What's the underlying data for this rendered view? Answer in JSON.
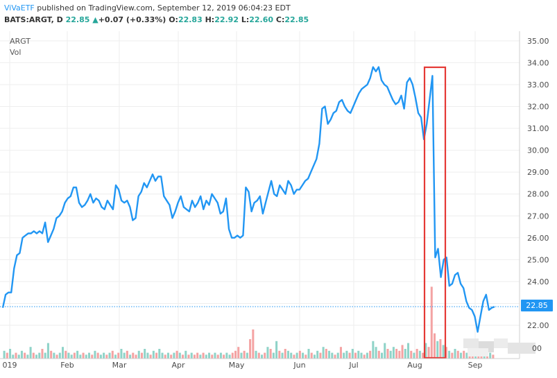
{
  "header": {
    "publisher": "ViVaETF",
    "published_text": " published on TradingView.com, September 12, 2019 06:04:23 EDT",
    "symbol_line": "BATS:ARGT, D",
    "last": "22.85",
    "change": "+0.07 (+0.33%)",
    "open_label": "O:",
    "open": "22.83",
    "high_label": "H:",
    "high": "22.92",
    "low_label": "L:",
    "low": "22.60",
    "close_label": "C:",
    "close": "22.85"
  },
  "legend": {
    "symbol": "ARGT",
    "volume": "Vol"
  },
  "colors": {
    "line": "#2196f3",
    "vol_up": "#8fd3c8",
    "vol_down": "#f4a3a3",
    "price_label_bg": "#2196f3",
    "highlight": "#e53935",
    "grid": "#eeeeee"
  },
  "chart_data": {
    "type": "line",
    "ylim": [
      21.0,
      35.3
    ],
    "y_ticks": [
      22,
      23,
      24,
      25,
      26,
      27,
      28,
      29,
      30,
      31,
      32,
      33,
      34,
      35
    ],
    "y_tick_labels": [
      "22.00",
      "23.00",
      "24.00",
      "25.00",
      "26.00",
      "27.00",
      "28.00",
      "29.00",
      "30.00",
      "31.00",
      "32.00",
      "33.00",
      "34.00",
      "35.00"
    ],
    "x_tick_labels": [
      "019",
      "Feb",
      "Mar",
      "Apr",
      "May",
      "Jun",
      "Jul",
      "Aug",
      "Sep"
    ],
    "last_price_label": "22.85",
    "last_price": 22.85,
    "partial_tick_label": "00",
    "series": [
      {
        "values": [
          22.8,
          23.4,
          23.5,
          23.5,
          24.6,
          25.2,
          25.3,
          26.0,
          26.1,
          26.2,
          26.2,
          26.3,
          26.2,
          26.3,
          26.2,
          26.7,
          25.8,
          26.1,
          26.4,
          26.9,
          27.0,
          27.2,
          27.6,
          27.8,
          27.9,
          28.3,
          28.3,
          27.6,
          27.4,
          27.5,
          27.7,
          28.0,
          27.6,
          27.8,
          27.7,
          27.4,
          27.3,
          27.7,
          27.5,
          27.3,
          28.4,
          28.2,
          27.7,
          27.6,
          27.7,
          27.4,
          26.8,
          26.9,
          27.9,
          28.1,
          28.5,
          28.3,
          28.6,
          28.9,
          28.6,
          28.8,
          28.8,
          27.9,
          27.7,
          27.5,
          26.9,
          27.2,
          27.6,
          27.9,
          27.4,
          27.3,
          27.2,
          27.7,
          27.4,
          27.6,
          27.9,
          27.3,
          27.7,
          27.5,
          28.0,
          27.8,
          27.6,
          27.1,
          27.2,
          27.8,
          26.4,
          26.0,
          26.0,
          26.1,
          26.0,
          26.1,
          28.3,
          28.1,
          27.2,
          27.6,
          27.7,
          27.9,
          27.1,
          27.6,
          28.1,
          28.6,
          28.0,
          27.9,
          28.4,
          28.2,
          28.0,
          28.6,
          28.4,
          28.0,
          28.2,
          28.2,
          28.4,
          28.6,
          28.7,
          29.0,
          29.3,
          29.6,
          30.3,
          31.9,
          32.0,
          31.2,
          31.4,
          31.7,
          31.8,
          32.2,
          32.3,
          32.0,
          31.8,
          31.7,
          32.0,
          32.3,
          32.6,
          32.8,
          32.9,
          33.0,
          33.3,
          33.8,
          33.6,
          33.8,
          33.2,
          33.0,
          32.9,
          32.6,
          32.3,
          32.1,
          32.2,
          32.5,
          31.9,
          33.1,
          33.3,
          33.0,
          32.4,
          31.7,
          31.5,
          30.5,
          31.2,
          32.3,
          33.4,
          25.1,
          25.5,
          24.2,
          25.0,
          25.1,
          23.8,
          23.9,
          24.3,
          24.4,
          23.9,
          23.7,
          23.1,
          22.8,
          22.7,
          22.4,
          21.7,
          22.4,
          23.1,
          23.4,
          22.7,
          22.8,
          22.85
        ]
      }
    ],
    "volume": [
      {
        "v": 0.4,
        "up": 1
      },
      {
        "v": 0.3,
        "up": 0
      },
      {
        "v": 0.5,
        "up": 1
      },
      {
        "v": 0.2,
        "up": 1
      },
      {
        "v": 0.3,
        "up": 0
      },
      {
        "v": 0.2,
        "up": 1
      },
      {
        "v": 0.4,
        "up": 1
      },
      {
        "v": 0.3,
        "up": 0
      },
      {
        "v": 0.2,
        "up": 1
      },
      {
        "v": 0.6,
        "up": 1
      },
      {
        "v": 0.3,
        "up": 0
      },
      {
        "v": 0.2,
        "up": 1
      },
      {
        "v": 0.3,
        "up": 1
      },
      {
        "v": 0.5,
        "up": 0
      },
      {
        "v": 0.3,
        "up": 1
      },
      {
        "v": 0.8,
        "up": 1
      },
      {
        "v": 0.4,
        "up": 0
      },
      {
        "v": 0.3,
        "up": 1
      },
      {
        "v": 0.2,
        "up": 0
      },
      {
        "v": 0.3,
        "up": 1
      },
      {
        "v": 0.6,
        "up": 1
      },
      {
        "v": 0.4,
        "up": 0
      },
      {
        "v": 0.3,
        "up": 1
      },
      {
        "v": 0.2,
        "up": 1
      },
      {
        "v": 0.3,
        "up": 0
      },
      {
        "v": 0.4,
        "up": 1
      },
      {
        "v": 0.2,
        "up": 1
      },
      {
        "v": 0.3,
        "up": 0
      },
      {
        "v": 0.2,
        "up": 1
      },
      {
        "v": 0.3,
        "up": 1
      },
      {
        "v": 0.2,
        "up": 0
      },
      {
        "v": 0.4,
        "up": 1
      },
      {
        "v": 0.3,
        "up": 0
      },
      {
        "v": 0.2,
        "up": 1
      },
      {
        "v": 0.3,
        "up": 1
      },
      {
        "v": 0.2,
        "up": 0
      },
      {
        "v": 0.3,
        "up": 1
      },
      {
        "v": 0.4,
        "up": 0
      },
      {
        "v": 0.2,
        "up": 1
      },
      {
        "v": 0.3,
        "up": 0
      },
      {
        "v": 0.5,
        "up": 1
      },
      {
        "v": 0.3,
        "up": 1
      },
      {
        "v": 0.4,
        "up": 0
      },
      {
        "v": 0.2,
        "up": 1
      },
      {
        "v": 0.3,
        "up": 0
      },
      {
        "v": 0.2,
        "up": 0
      },
      {
        "v": 0.4,
        "up": 1
      },
      {
        "v": 0.3,
        "up": 0
      },
      {
        "v": 0.5,
        "up": 1
      },
      {
        "v": 0.3,
        "up": 1
      },
      {
        "v": 0.2,
        "up": 0
      },
      {
        "v": 0.4,
        "up": 1
      },
      {
        "v": 0.3,
        "up": 0
      },
      {
        "v": 0.5,
        "up": 1
      },
      {
        "v": 0.3,
        "up": 1
      },
      {
        "v": 0.2,
        "up": 0
      },
      {
        "v": 0.3,
        "up": 1
      },
      {
        "v": 0.2,
        "up": 0
      },
      {
        "v": 0.3,
        "up": 1
      },
      {
        "v": 0.4,
        "up": 0
      },
      {
        "v": 0.3,
        "up": 1
      },
      {
        "v": 0.2,
        "up": 0
      },
      {
        "v": 0.4,
        "up": 1
      },
      {
        "v": 0.2,
        "up": 0
      },
      {
        "v": 0.3,
        "up": 1
      },
      {
        "v": 0.2,
        "up": 0
      },
      {
        "v": 0.3,
        "up": 0
      },
      {
        "v": 0.2,
        "up": 1
      },
      {
        "v": 0.3,
        "up": 0
      },
      {
        "v": 0.2,
        "up": 1
      },
      {
        "v": 0.3,
        "up": 1
      },
      {
        "v": 0.2,
        "up": 0
      },
      {
        "v": 0.3,
        "up": 1
      },
      {
        "v": 0.2,
        "up": 0
      },
      {
        "v": 0.3,
        "up": 1
      },
      {
        "v": 0.2,
        "up": 0
      },
      {
        "v": 0.3,
        "up": 1
      },
      {
        "v": 0.2,
        "up": 1
      },
      {
        "v": 0.3,
        "up": 0
      },
      {
        "v": 0.4,
        "up": 0
      },
      {
        "v": 0.6,
        "up": 0
      },
      {
        "v": 0.3,
        "up": 1
      },
      {
        "v": 0.4,
        "up": 0
      },
      {
        "v": 0.3,
        "up": 1
      },
      {
        "v": 1.0,
        "up": 0
      },
      {
        "v": 1.5,
        "up": 0
      },
      {
        "v": 0.4,
        "up": 1
      },
      {
        "v": 0.3,
        "up": 0
      },
      {
        "v": 0.2,
        "up": 1
      },
      {
        "v": 0.3,
        "up": 0
      },
      {
        "v": 0.6,
        "up": 1
      },
      {
        "v": 0.5,
        "up": 0
      },
      {
        "v": 0.3,
        "up": 1
      },
      {
        "v": 0.9,
        "up": 1
      },
      {
        "v": 0.4,
        "up": 0
      },
      {
        "v": 0.3,
        "up": 1
      },
      {
        "v": 0.5,
        "up": 0
      },
      {
        "v": 0.4,
        "up": 1
      },
      {
        "v": 0.3,
        "up": 1
      },
      {
        "v": 0.2,
        "up": 0
      },
      {
        "v": 0.3,
        "up": 1
      },
      {
        "v": 0.4,
        "up": 0
      },
      {
        "v": 0.3,
        "up": 1
      },
      {
        "v": 0.2,
        "up": 0
      },
      {
        "v": 0.5,
        "up": 1
      },
      {
        "v": 0.3,
        "up": 0
      },
      {
        "v": 0.2,
        "up": 1
      },
      {
        "v": 0.4,
        "up": 1
      },
      {
        "v": 0.3,
        "up": 0
      },
      {
        "v": 0.6,
        "up": 1
      },
      {
        "v": 0.5,
        "up": 0
      },
      {
        "v": 0.4,
        "up": 1
      },
      {
        "v": 0.3,
        "up": 1
      },
      {
        "v": 0.2,
        "up": 0
      },
      {
        "v": 0.3,
        "up": 1
      },
      {
        "v": 0.6,
        "up": 0
      },
      {
        "v": 0.3,
        "up": 1
      },
      {
        "v": 0.4,
        "up": 1
      },
      {
        "v": 0.3,
        "up": 0
      },
      {
        "v": 0.5,
        "up": 1
      },
      {
        "v": 0.3,
        "up": 0
      },
      {
        "v": 0.4,
        "up": 1
      },
      {
        "v": 0.3,
        "up": 1
      },
      {
        "v": 0.2,
        "up": 0
      },
      {
        "v": 0.3,
        "up": 1
      },
      {
        "v": 0.4,
        "up": 0
      },
      {
        "v": 0.9,
        "up": 1
      },
      {
        "v": 0.6,
        "up": 1
      },
      {
        "v": 0.4,
        "up": 0
      },
      {
        "v": 0.3,
        "up": 1
      },
      {
        "v": 0.8,
        "up": 1
      },
      {
        "v": 0.5,
        "up": 0
      },
      {
        "v": 0.4,
        "up": 1
      },
      {
        "v": 0.6,
        "up": 1
      },
      {
        "v": 0.5,
        "up": 0
      },
      {
        "v": 0.4,
        "up": 0
      },
      {
        "v": 0.7,
        "up": 0
      },
      {
        "v": 0.5,
        "up": 1
      },
      {
        "v": 0.8,
        "up": 1
      },
      {
        "v": 0.4,
        "up": 0
      },
      {
        "v": 0.3,
        "up": 1
      },
      {
        "v": 0.5,
        "up": 0
      },
      {
        "v": 0.4,
        "up": 1
      },
      {
        "v": 0.3,
        "up": 0
      },
      {
        "v": 0.8,
        "up": 1
      },
      {
        "v": 0.6,
        "up": 0
      },
      {
        "v": 3.7,
        "up": 0
      },
      {
        "v": 1.3,
        "up": 0
      },
      {
        "v": 0.9,
        "up": 1
      },
      {
        "v": 1.0,
        "up": 0
      },
      {
        "v": 0.7,
        "up": 1
      },
      {
        "v": 0.6,
        "up": 0
      },
      {
        "v": 0.4,
        "up": 1
      },
      {
        "v": 0.3,
        "up": 0
      },
      {
        "v": 0.5,
        "up": 1
      },
      {
        "v": 0.4,
        "up": 0
      },
      {
        "v": 0.3,
        "up": 1
      },
      {
        "v": 0.4,
        "up": 0
      },
      {
        "v": 0.3,
        "up": 1
      },
      {
        "v": 0.5,
        "up": 0
      },
      {
        "v": 0.4,
        "up": 0
      },
      {
        "v": 0.3,
        "up": 1
      },
      {
        "v": 0.4,
        "up": 0
      },
      {
        "v": 0.5,
        "up": 0
      },
      {
        "v": 0.3,
        "up": 1
      },
      {
        "v": 0.4,
        "up": 0
      },
      {
        "v": 0.3,
        "up": 1
      },
      {
        "v": 0.2,
        "up": 0
      }
    ]
  }
}
